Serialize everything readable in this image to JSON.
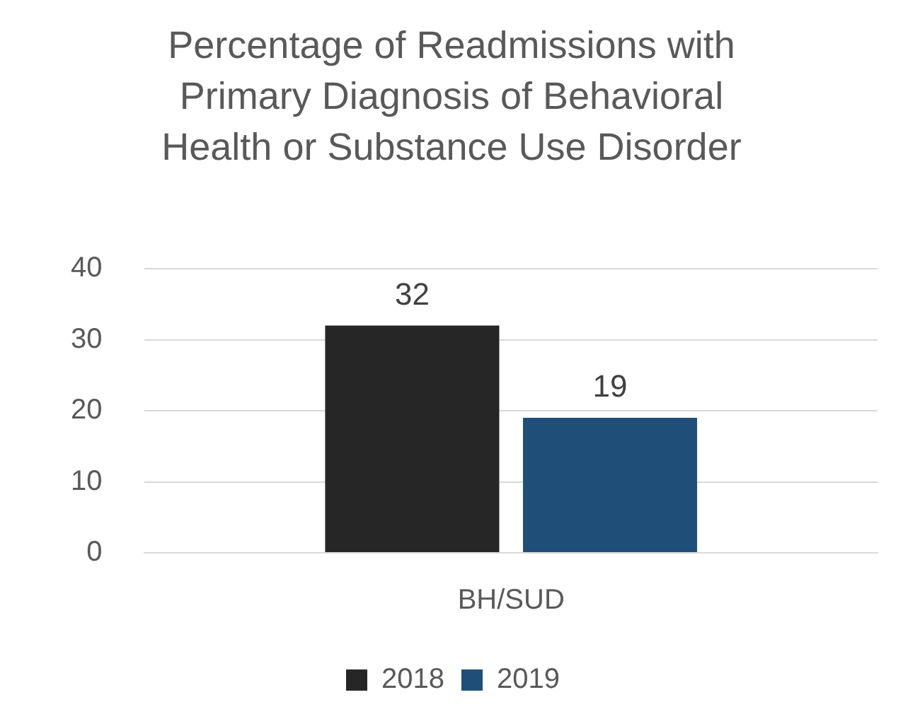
{
  "chart_data": {
    "type": "bar",
    "title": "Percentage of Readmissions with Primary Diagnosis of Behavioral Health or Substance Use Disorder",
    "categories": [
      "BH/SUD"
    ],
    "series": [
      {
        "name": "2018",
        "color": "#262626",
        "values": [
          32
        ]
      },
      {
        "name": "2019",
        "color": "#1f4e79",
        "values": [
          19
        ]
      }
    ],
    "ylim": [
      0,
      40
    ],
    "yticks": [
      0,
      10,
      20,
      30,
      40
    ],
    "grid": "y",
    "legend": "bottom",
    "data_labels": true
  }
}
